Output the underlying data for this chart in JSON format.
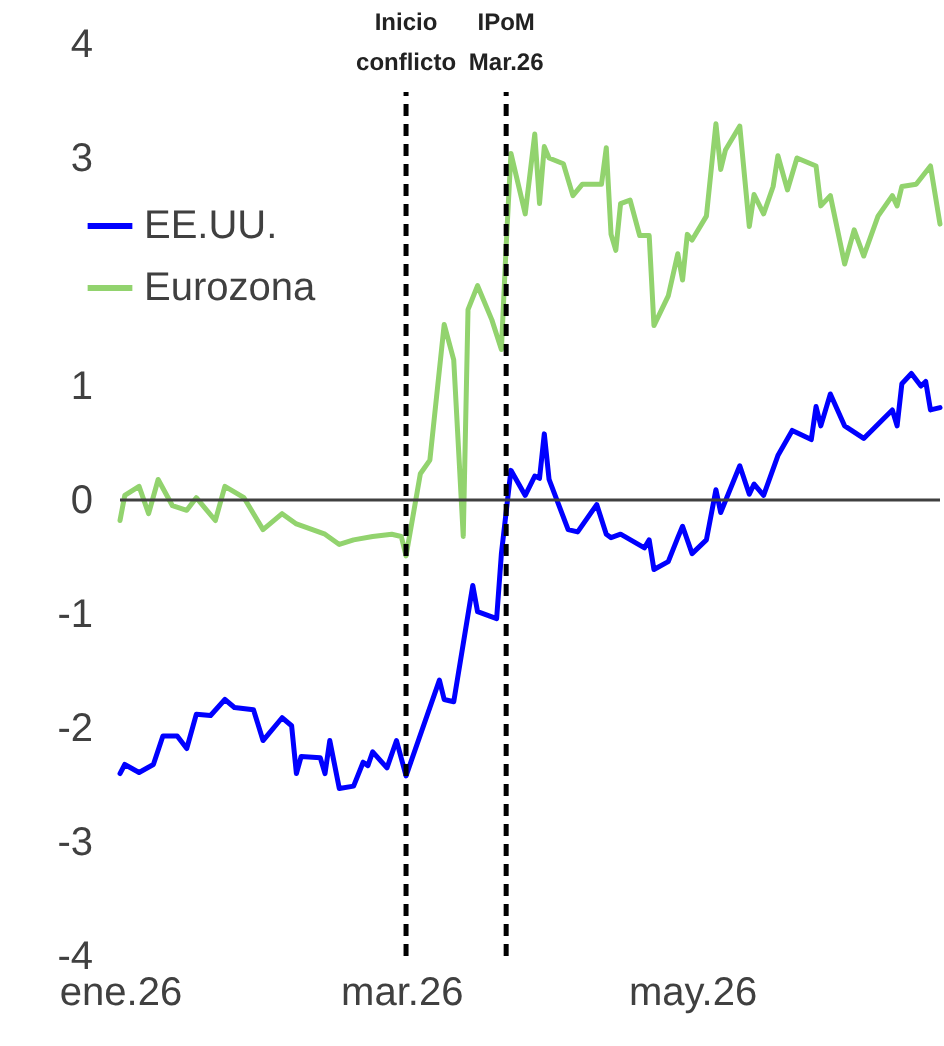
{
  "chart_data": {
    "type": "line",
    "xlim": [
      "2026-01-01",
      "2026-06-22"
    ],
    "xticks": [
      {
        "value": "2026-01-01",
        "label": "ene.26"
      },
      {
        "value": "2026-03-01",
        "label": "mar.26"
      },
      {
        "value": "2026-05-01",
        "label": "may.26"
      }
    ],
    "ylim": [
      -4,
      4
    ],
    "yticks": [
      -4,
      -3,
      -2,
      -1,
      0,
      1,
      3,
      4
    ],
    "grid": false,
    "legend": "top left",
    "line_style": "solid",
    "marker": "none",
    "ref_lines": [
      {
        "axis": "y",
        "value": 0,
        "color": "#404040",
        "line_style": "solid"
      },
      {
        "axis": "x",
        "value": "2026-03-02",
        "label": "Inicio conflicto",
        "color": "#000000",
        "line_style": "dashed"
      },
      {
        "axis": "x",
        "value": "2026-03-23",
        "label": "IPoM Mar.26",
        "color": "#000000",
        "line_style": "dashed"
      }
    ],
    "series": [
      {
        "name": "EE.UU.",
        "color": "#0000ff",
        "x": [
          "2026-01-01",
          "2026-01-02",
          "2026-01-05",
          "2026-01-08",
          "2026-01-10",
          "2026-01-13",
          "2026-01-15",
          "2026-01-17",
          "2026-01-20",
          "2026-01-23",
          "2026-01-25",
          "2026-01-29",
          "2026-01-31",
          "2026-02-04",
          "2026-02-06",
          "2026-02-07",
          "2026-02-08",
          "2026-02-12",
          "2026-02-13",
          "2026-02-14",
          "2026-02-16",
          "2026-02-19",
          "2026-02-21",
          "2026-02-22",
          "2026-02-23",
          "2026-02-26",
          "2026-02-28",
          "2026-03-02",
          "2026-03-09",
          "2026-03-10",
          "2026-03-12",
          "2026-03-16",
          "2026-03-17",
          "2026-03-21",
          "2026-03-22",
          "2026-03-24",
          "2026-03-27",
          "2026-03-29",
          "2026-03-30",
          "2026-03-31",
          "2026-04-01",
          "2026-04-05",
          "2026-04-07",
          "2026-04-11",
          "2026-04-13",
          "2026-04-14",
          "2026-04-16",
          "2026-04-21",
          "2026-04-22",
          "2026-04-23",
          "2026-04-26",
          "2026-04-28",
          "2026-04-29",
          "2026-05-01",
          "2026-05-04",
          "2026-05-06",
          "2026-05-07",
          "2026-05-11",
          "2026-05-13",
          "2026-05-14",
          "2026-05-16",
          "2026-05-19",
          "2026-05-22",
          "2026-05-26",
          "2026-05-27",
          "2026-05-28",
          "2026-05-30",
          "2026-06-02",
          "2026-06-06",
          "2026-06-12",
          "2026-06-13",
          "2026-06-14",
          "2026-06-16",
          "2026-06-18",
          "2026-06-19",
          "2026-06-20",
          "2026-06-22"
        ],
        "values": [
          -2.4,
          -2.32,
          -2.39,
          -2.32,
          -2.07,
          -2.07,
          -2.18,
          -1.88,
          -1.89,
          -1.75,
          -1.82,
          -1.84,
          -2.11,
          -1.91,
          -1.98,
          -2.4,
          -2.25,
          -2.26,
          -2.4,
          -2.11,
          -2.53,
          -2.51,
          -2.3,
          -2.33,
          -2.21,
          -2.35,
          -2.11,
          -2.42,
          -1.58,
          -1.75,
          -1.77,
          -0.75,
          -0.98,
          -1.04,
          -0.47,
          0.26,
          0.04,
          0.21,
          0.19,
          0.58,
          0.18,
          -0.26,
          -0.28,
          -0.04,
          -0.3,
          -0.33,
          -0.3,
          -0.42,
          -0.35,
          -0.61,
          -0.54,
          -0.33,
          -0.23,
          -0.47,
          -0.35,
          0.09,
          -0.11,
          0.3,
          0.05,
          0.14,
          0.04,
          0.39,
          0.61,
          0.53,
          0.82,
          0.65,
          0.93,
          0.65,
          0.54,
          0.79,
          0.65,
          1.02,
          1.11,
          1.0,
          1.04,
          0.79,
          0.81
        ]
      },
      {
        "name": "Eurozona",
        "color": "#92d36e",
        "x": [
          "2026-01-01",
          "2026-01-02",
          "2026-01-05",
          "2026-01-07",
          "2026-01-09",
          "2026-01-12",
          "2026-01-15",
          "2026-01-17",
          "2026-01-21",
          "2026-01-23",
          "2026-01-27",
          "2026-01-31",
          "2026-02-04",
          "2026-02-07",
          "2026-02-13",
          "2026-02-16",
          "2026-02-19",
          "2026-02-23",
          "2026-02-27",
          "2026-03-01",
          "2026-03-02",
          "2026-03-05",
          "2026-03-07",
          "2026-03-10",
          "2026-03-12",
          "2026-03-14",
          "2026-03-15",
          "2026-03-17",
          "2026-03-20",
          "2026-03-22",
          "2026-03-23",
          "2026-03-24",
          "2026-03-27",
          "2026-03-29",
          "2026-03-30",
          "2026-03-31",
          "2026-04-01",
          "2026-04-04",
          "2026-04-06",
          "2026-04-08",
          "2026-04-12",
          "2026-04-13",
          "2026-04-14",
          "2026-04-15",
          "2026-04-16",
          "2026-04-18",
          "2026-04-20",
          "2026-04-22",
          "2026-04-23",
          "2026-04-26",
          "2026-04-28",
          "2026-04-29",
          "2026-04-30",
          "2026-05-01",
          "2026-05-04",
          "2026-05-06",
          "2026-05-07",
          "2026-05-08",
          "2026-05-11",
          "2026-05-13",
          "2026-05-14",
          "2026-05-16",
          "2026-05-18",
          "2026-05-19",
          "2026-05-21",
          "2026-05-23",
          "2026-05-27",
          "2026-05-28",
          "2026-05-30",
          "2026-06-02",
          "2026-06-04",
          "2026-06-06",
          "2026-06-09",
          "2026-06-12",
          "2026-06-13",
          "2026-06-14",
          "2026-06-17",
          "2026-06-20",
          "2026-06-22"
        ],
        "values": [
          -0.18,
          0.04,
          0.12,
          -0.12,
          0.18,
          -0.05,
          -0.09,
          0.02,
          -0.18,
          0.12,
          0.02,
          -0.26,
          -0.12,
          -0.21,
          -0.3,
          -0.39,
          -0.35,
          -0.32,
          -0.3,
          -0.32,
          -0.49,
          0.23,
          0.35,
          1.54,
          1.23,
          -0.32,
          1.67,
          1.88,
          1.58,
          1.32,
          2.23,
          3.04,
          2.51,
          3.21,
          2.6,
          3.1,
          3.0,
          2.95,
          2.67,
          2.77,
          2.77,
          3.09,
          2.33,
          2.19,
          2.6,
          2.63,
          2.32,
          2.32,
          1.53,
          1.79,
          2.16,
          1.93,
          2.33,
          2.28,
          2.49,
          3.3,
          2.9,
          3.07,
          3.28,
          2.4,
          2.68,
          2.51,
          2.75,
          3.02,
          2.72,
          3.0,
          2.93,
          2.58,
          2.67,
          2.07,
          2.37,
          2.14,
          2.49,
          2.67,
          2.58,
          2.75,
          2.77,
          2.93,
          2.42
        ]
      }
    ]
  }
}
